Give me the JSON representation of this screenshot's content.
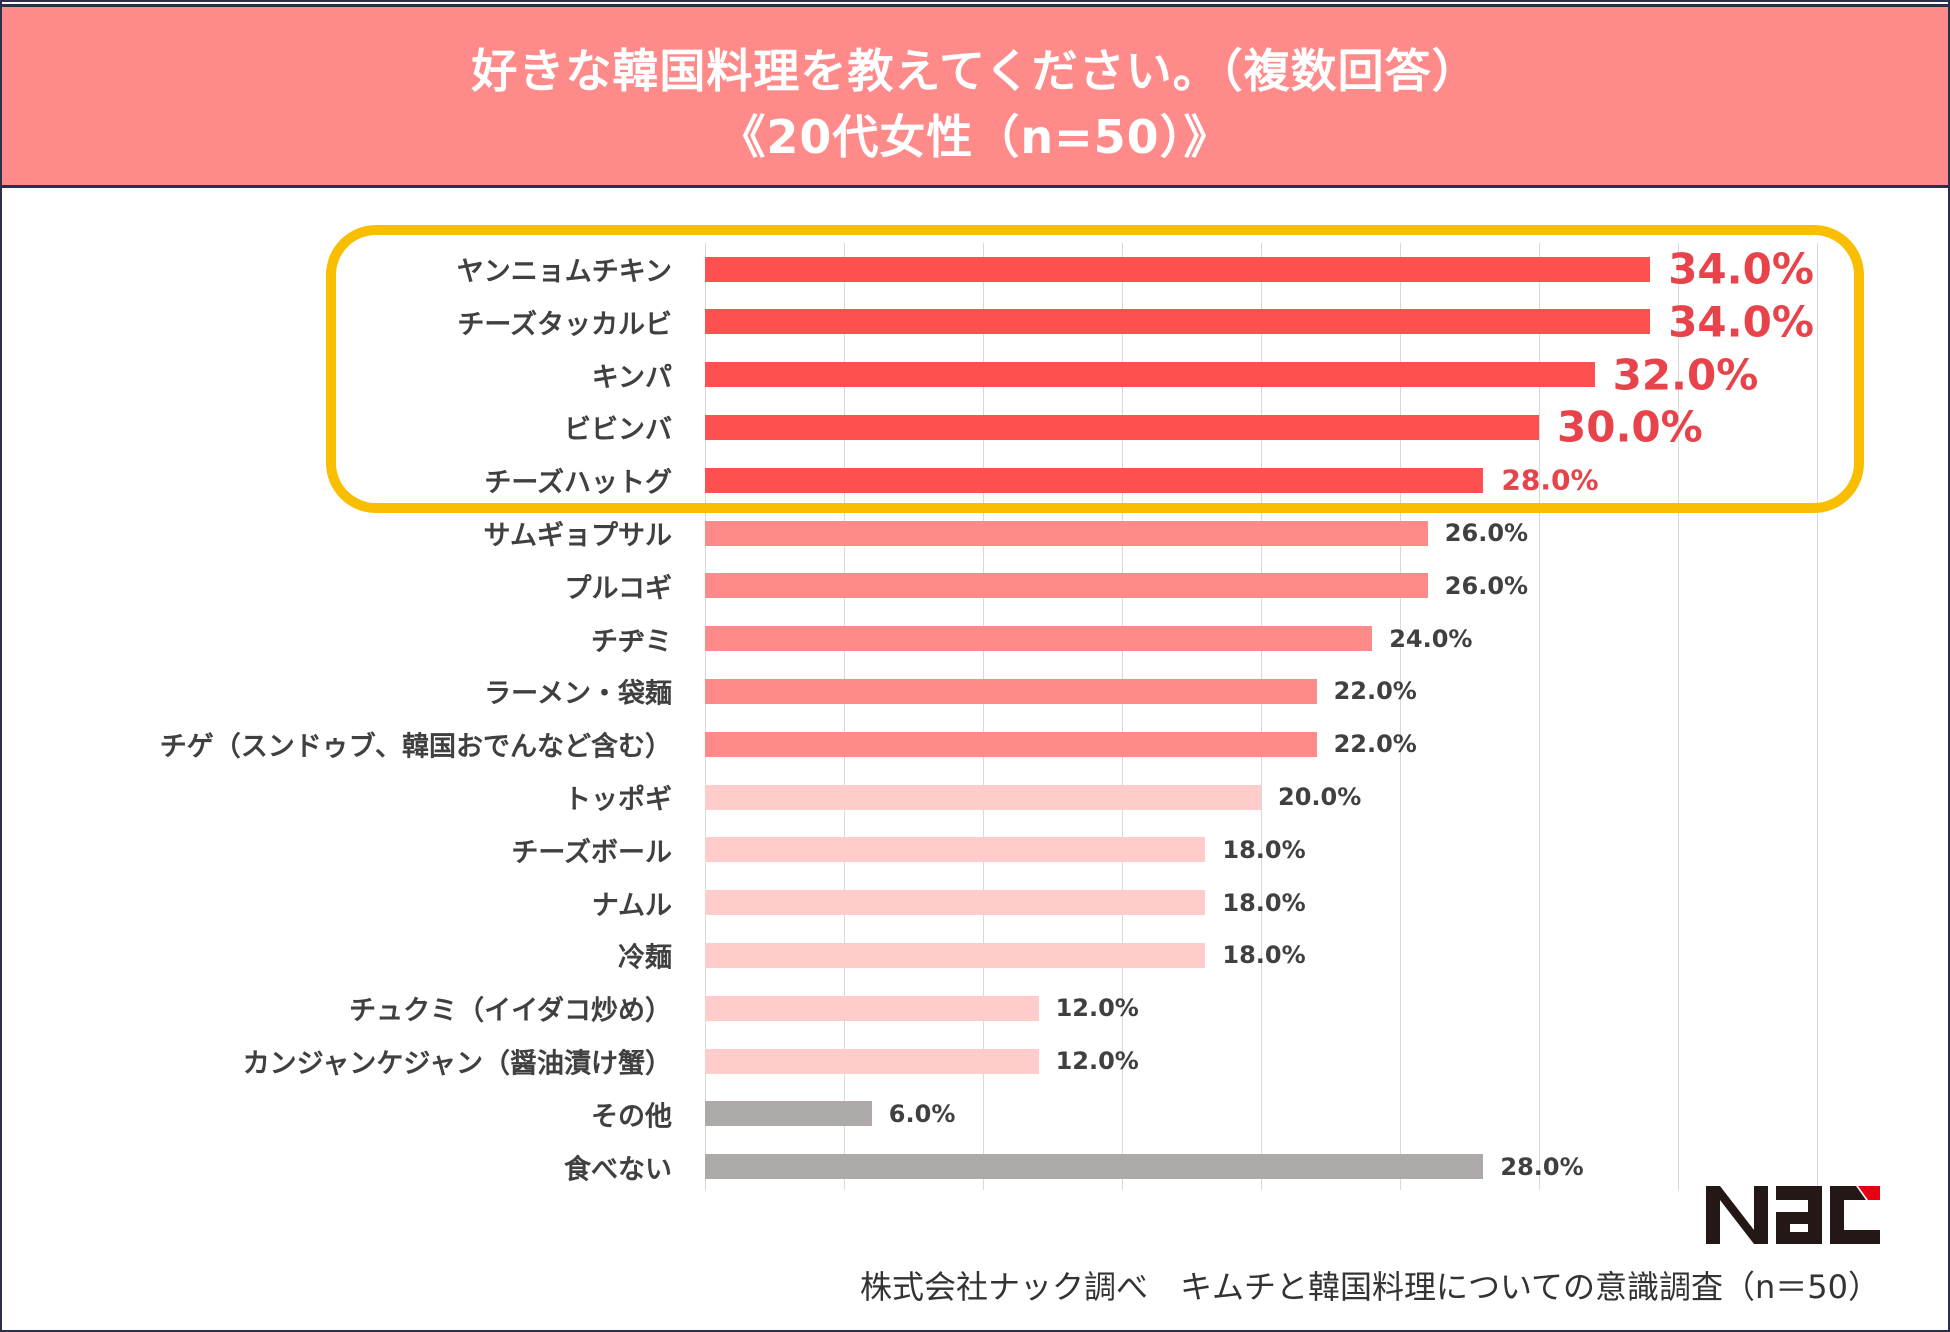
{
  "chart_data": {
    "type": "bar",
    "orientation": "horizontal",
    "title": "好きな韓国料理を教えてください。（複数回答）",
    "subtitle": "《20代女性（n=50）》",
    "categories": [
      "ヤンニョムチキン",
      "チーズタッカルビ",
      "キンパ",
      "ビビンバ",
      "チーズハットグ",
      "サムギョプサル",
      "プルコギ",
      "チヂミ",
      "ラーメン・袋麺",
      "チゲ（スンドゥブ、韓国おでんなど含む）",
      "トッポギ",
      "チーズボール",
      "ナムル",
      "冷麺",
      "チュクミ（イイダコ炒め）",
      "カンジャンケジャン（醤油漬け蟹）",
      "その他",
      "食べない"
    ],
    "values": [
      34.0,
      34.0,
      32.0,
      30.0,
      28.0,
      26.0,
      26.0,
      24.0,
      22.0,
      22.0,
      20.0,
      18.0,
      18.0,
      18.0,
      12.0,
      12.0,
      6.0,
      28.0
    ],
    "value_labels": [
      "34.0%",
      "34.0%",
      "32.0%",
      "30.0%",
      "28.0%",
      "26.0%",
      "26.0%",
      "24.0%",
      "22.0%",
      "22.0%",
      "20.0%",
      "18.0%",
      "18.0%",
      "18.0%",
      "12.0%",
      "12.0%",
      "6.0%",
      "28.0%"
    ],
    "unit": "%",
    "xlim": [
      0,
      40
    ],
    "grid_step": 5,
    "grid": true,
    "highlighted_top": 5,
    "colors": {
      "top": "#ff5050",
      "mid": "#ff8a8a",
      "low": "#ffcccc",
      "other": "#ada9a9",
      "highlight_label": "#e8424a",
      "highlight_box": "#f9be00",
      "header": "#ff8a8a"
    },
    "color_groups": [
      "top",
      "top",
      "top",
      "top",
      "top",
      "mid",
      "mid",
      "mid",
      "mid",
      "mid",
      "low",
      "low",
      "low",
      "low",
      "low",
      "low",
      "other",
      "other"
    ]
  },
  "logo": {
    "text": "Nac"
  },
  "footer": {
    "source": "株式会社ナック調べ　キムチと韓国料理についての意識調査（n＝50）"
  }
}
